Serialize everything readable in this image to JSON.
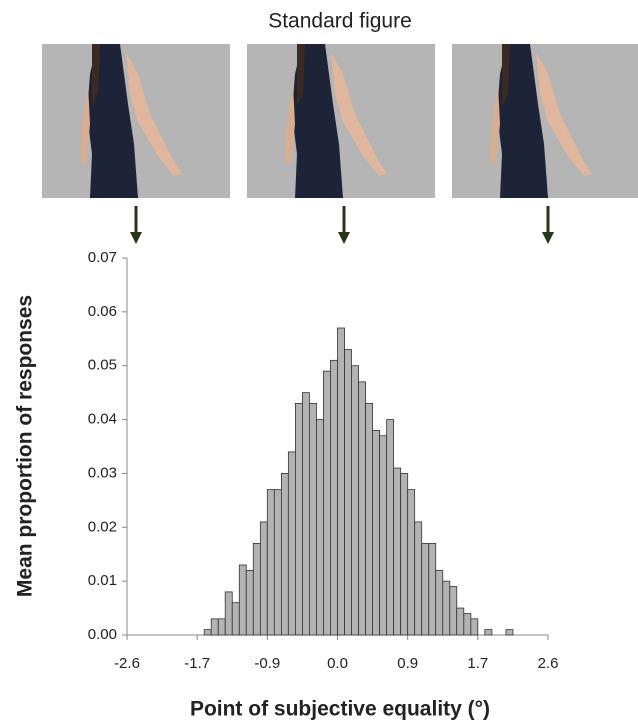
{
  "chart_data": {
    "type": "histogram",
    "title": "Standard figure",
    "xlabel": "Point of subjective equality (°)",
    "ylabel": "Mean proportion of responses",
    "color": "#b3b3b3",
    "bins": [
      -2.6,
      -2.513,
      -2.427,
      -2.34,
      -2.253,
      -2.167,
      -2.08,
      -1.993,
      -1.907,
      -1.82,
      -1.733,
      -1.647,
      -1.56,
      -1.473,
      -1.387,
      -1.3,
      -1.213,
      -1.127,
      -1.04,
      -0.953,
      -0.867,
      -0.78,
      -0.693,
      -0.607,
      -0.52,
      -0.433,
      -0.347,
      -0.26,
      -0.173,
      -0.087,
      0,
      0.087,
      0.173,
      0.26,
      0.347,
      0.433,
      0.52,
      0.607,
      0.693,
      0.78,
      0.867,
      0.953,
      1.04,
      1.127,
      1.213,
      1.3,
      1.387,
      1.473,
      1.56,
      1.647,
      1.733,
      1.82,
      1.907,
      1.993,
      2.08,
      2.167,
      2.253,
      2.34,
      2.427,
      2.513,
      2.6
    ],
    "values": [
      0,
      0,
      0,
      0,
      0,
      0,
      0,
      0,
      0,
      0,
      0,
      0.001,
      0.003,
      0.003,
      0.008,
      0.006,
      0.013,
      0.012,
      0.017,
      0.021,
      0.027,
      0.027,
      0.03,
      0.034,
      0.043,
      0.045,
      0.043,
      0.04,
      0.049,
      0.051,
      0.057,
      0.053,
      0.05,
      0.047,
      0.043,
      0.038,
      0.037,
      0.04,
      0.031,
      0.03,
      0.027,
      0.021,
      0.017,
      0.017,
      0.012,
      0.01,
      0.009,
      0.005,
      0.004,
      0.003,
      0,
      0.001,
      0,
      0,
      0.001,
      0,
      0,
      0,
      0,
      0
    ],
    "xlim": [
      -2.6,
      2.6
    ],
    "xticks": [
      -2.6,
      {
        "value": -1.733,
        "label": "-1.7"
      },
      {
        "value": -0.867,
        "label": "-0.9"
      },
      {
        "value": 0,
        "label": "0.0"
      },
      {
        "value": 0.867,
        "label": "0.9"
      },
      {
        "value": 1.733,
        "label": "1.7"
      },
      2.6
    ],
    "ylim": [
      0,
      0.07
    ],
    "yticks": [
      {
        "value": 0,
        "label": "0.00"
      },
      0.01,
      0.02,
      0.03,
      0.04,
      0.05,
      0.06,
      0.07
    ]
  }
}
